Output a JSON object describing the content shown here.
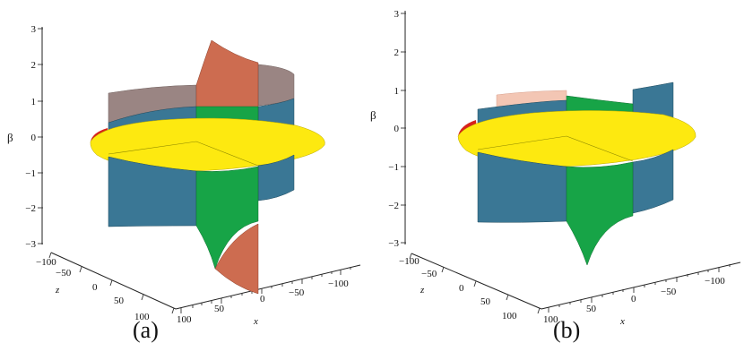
{
  "panels": [
    {
      "caption": "(a)",
      "beta_label": "β",
      "z_label": "z",
      "x_label": "x",
      "beta_ticks": [
        "3",
        "2",
        "1",
        "0",
        "−1",
        "−2",
        "−3"
      ],
      "z_ticks": [
        "−100",
        "−50",
        "0",
        "50",
        "100"
      ],
      "x_ticks": [
        "100",
        "50",
        "0",
        "−50",
        "−100"
      ]
    },
    {
      "caption": "(b)",
      "beta_label": "β",
      "z_label": "z",
      "x_label": "x",
      "beta_ticks": [
        "3",
        "2",
        "1",
        "0",
        "−1",
        "−2",
        "−3"
      ],
      "z_ticks": [
        "−100",
        "−50",
        "0",
        "50",
        "100"
      ],
      "x_ticks": [
        "100",
        "50",
        "0",
        "−50",
        "−100"
      ]
    }
  ],
  "colors": {
    "steel_blue": "#3a7795",
    "taupe": "#9a8583",
    "terracotta": "#cd6c50",
    "green": "#17a447",
    "yellow": "#fde910",
    "red": "#d8231b",
    "pale_pink": "#f3c6b4"
  }
}
